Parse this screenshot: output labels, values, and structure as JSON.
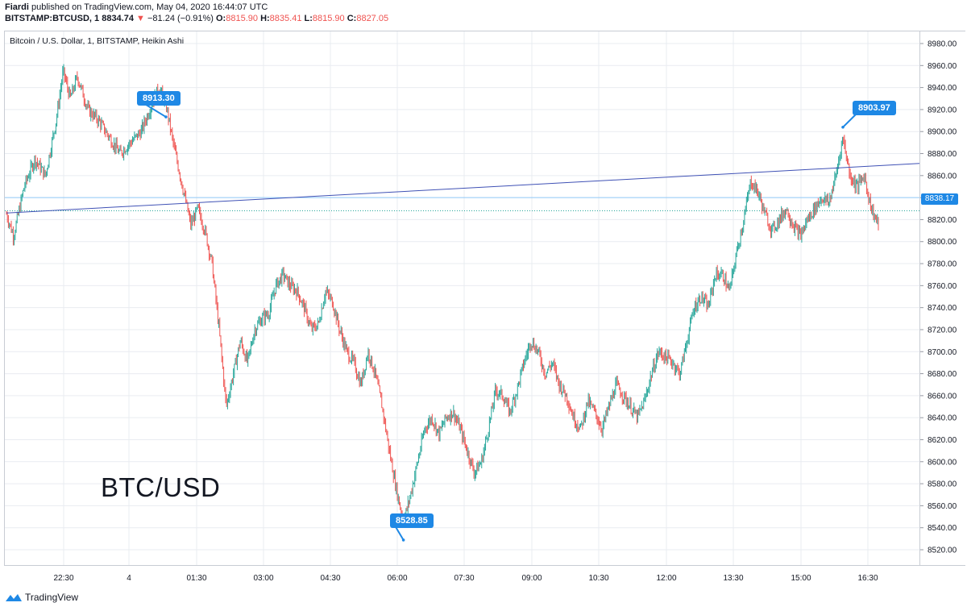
{
  "header": {
    "author": "Fiardi",
    "published": " published on TradingView.com, May 04, 2020 16:44:07 UTC",
    "symbol": "BITSTAMP:BTCUSD, 1",
    "last": "8834.74",
    "change_arrow": "▼",
    "change": "−81.24 (−0.91%)",
    "o_label": "O:",
    "o_value": "8815.90",
    "h_label": "H:",
    "h_value": "8835.41",
    "l_label": "L:",
    "l_value": "8815.90",
    "c_label": "C:",
    "c_value": "8827.05"
  },
  "subtitle": "Bitcoin / U.S. Dollar, 1, BITSTAMP, Heikin Ashi",
  "big_label": "BTC/USD",
  "callouts": {
    "c1": "8913.30",
    "c2": "8903.97",
    "c3": "8528.85"
  },
  "current_price": "8838.17",
  "footer": {
    "brand": "TradingView",
    "logo_icon": "tradingview-logo-icon"
  },
  "colors": {
    "up": "#26a69a",
    "down": "#ef5350",
    "accent": "#1e88e5",
    "trendline": "#3f51b5",
    "grid": "#e9ecf1"
  },
  "chart_data": {
    "type": "candlestick",
    "title": "Bitcoin / U.S. Dollar, 1, BITSTAMP, Heikin Ashi",
    "xlabel": "",
    "ylabel": "",
    "ylim": [
      8510,
      8990
    ],
    "y_ticks": [
      "8980.00",
      "8960.00",
      "8940.00",
      "8920.00",
      "8900.00",
      "8880.00",
      "8860.00",
      "8840.00",
      "8820.00",
      "8800.00",
      "8780.00",
      "8760.00",
      "8740.00",
      "8720.00",
      "8700.00",
      "8680.00",
      "8660.00",
      "8640.00",
      "8620.00",
      "8600.00",
      "8580.00",
      "8560.00",
      "8540.00",
      "8520.00"
    ],
    "x_ticks": [
      "22:30",
      "4",
      "01:30",
      "03:00",
      "04:30",
      "06:00",
      "07:30",
      "09:00",
      "10:30",
      "12:00",
      "13:30",
      "15:00",
      "16:30"
    ],
    "price_path": [
      [
        0,
        8825
      ],
      [
        2,
        8805
      ],
      [
        5,
        8850
      ],
      [
        8,
        8875
      ],
      [
        11,
        8860
      ],
      [
        14,
        8910
      ],
      [
        16,
        8955
      ],
      [
        18,
        8930
      ],
      [
        20,
        8950
      ],
      [
        23,
        8920
      ],
      [
        26,
        8910
      ],
      [
        29,
        8895
      ],
      [
        32,
        8880
      ],
      [
        35,
        8890
      ],
      [
        38,
        8900
      ],
      [
        41,
        8925
      ],
      [
        43,
        8940
      ],
      [
        45,
        8925
      ],
      [
        47,
        8890
      ],
      [
        50,
        8845
      ],
      [
        52,
        8815
      ],
      [
        54,
        8830
      ],
      [
        56,
        8810
      ],
      [
        58,
        8780
      ],
      [
        60,
        8720
      ],
      [
        62,
        8650
      ],
      [
        64,
        8680
      ],
      [
        66,
        8710
      ],
      [
        68,
        8690
      ],
      [
        70,
        8720
      ],
      [
        72,
        8730
      ],
      [
        74,
        8735
      ],
      [
        76,
        8760
      ],
      [
        78,
        8770
      ],
      [
        80,
        8760
      ],
      [
        82,
        8755
      ],
      [
        84,
        8740
      ],
      [
        86,
        8720
      ],
      [
        88,
        8725
      ],
      [
        90,
        8755
      ],
      [
        92,
        8745
      ],
      [
        94,
        8720
      ],
      [
        96,
        8700
      ],
      [
        98,
        8690
      ],
      [
        100,
        8670
      ],
      [
        102,
        8700
      ],
      [
        104,
        8680
      ],
      [
        106,
        8650
      ],
      [
        108,
        8610
      ],
      [
        110,
        8575
      ],
      [
        112,
        8545
      ],
      [
        114,
        8570
      ],
      [
        116,
        8600
      ],
      [
        118,
        8630
      ],
      [
        120,
        8640
      ],
      [
        122,
        8625
      ],
      [
        124,
        8640
      ],
      [
        126,
        8645
      ],
      [
        128,
        8630
      ],
      [
        130,
        8610
      ],
      [
        132,
        8590
      ],
      [
        134,
        8600
      ],
      [
        136,
        8630
      ],
      [
        138,
        8665
      ],
      [
        140,
        8660
      ],
      [
        142,
        8645
      ],
      [
        144,
        8665
      ],
      [
        146,
        8690
      ],
      [
        148,
        8710
      ],
      [
        150,
        8700
      ],
      [
        152,
        8680
      ],
      [
        154,
        8690
      ],
      [
        156,
        8670
      ],
      [
        158,
        8660
      ],
      [
        160,
        8640
      ],
      [
        162,
        8630
      ],
      [
        164,
        8655
      ],
      [
        166,
        8645
      ],
      [
        168,
        8630
      ],
      [
        170,
        8650
      ],
      [
        172,
        8670
      ],
      [
        174,
        8660
      ],
      [
        176,
        8650
      ],
      [
        178,
        8640
      ],
      [
        180,
        8655
      ],
      [
        182,
        8680
      ],
      [
        184,
        8700
      ],
      [
        186,
        8695
      ],
      [
        188,
        8690
      ],
      [
        190,
        8680
      ],
      [
        192,
        8710
      ],
      [
        194,
        8740
      ],
      [
        196,
        8750
      ],
      [
        198,
        8740
      ],
      [
        200,
        8770
      ],
      [
        202,
        8770
      ],
      [
        204,
        8755
      ],
      [
        206,
        8790
      ],
      [
        208,
        8820
      ],
      [
        210,
        8855
      ],
      [
        212,
        8845
      ],
      [
        214,
        8825
      ],
      [
        216,
        8810
      ],
      [
        218,
        8820
      ],
      [
        220,
        8830
      ],
      [
        222,
        8815
      ],
      [
        224,
        8805
      ],
      [
        226,
        8820
      ],
      [
        228,
        8830
      ],
      [
        230,
        8840
      ],
      [
        232,
        8835
      ],
      [
        234,
        8860
      ],
      [
        236,
        8895
      ],
      [
        238,
        8860
      ],
      [
        240,
        8850
      ],
      [
        242,
        8860
      ],
      [
        244,
        8830
      ],
      [
        246,
        8815
      ]
    ],
    "trendline": [
      [
        0,
        8826
      ],
      [
        247,
        8871
      ]
    ],
    "horizontal_lines": [
      8840,
      8828
    ],
    "annotations": [
      {
        "label": "8913.30",
        "x": 45,
        "y": 8913.3
      },
      {
        "label": "8903.97",
        "x": 236,
        "y": 8903.97
      },
      {
        "label": "8528.85",
        "x": 112,
        "y": 8528.85
      }
    ]
  }
}
